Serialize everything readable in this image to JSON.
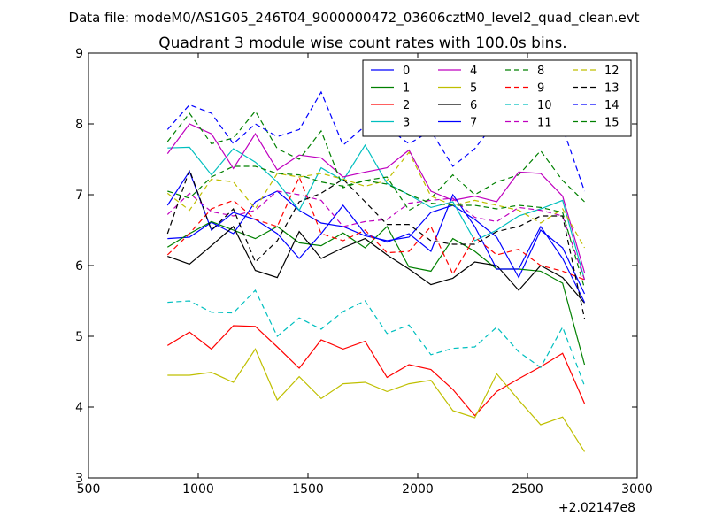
{
  "header": {
    "data_file": "Data file: modeM0/AS1G05_246T04_9000000472_03606cztM0_level2_quad_clean.evt"
  },
  "chart_data": {
    "type": "line",
    "title": "Quadrant 3 module wise count rates with 100.0s bins.",
    "xlabel": "",
    "ylabel": "",
    "x_offset_label": "+2.02147e8",
    "xlim": [
      500,
      3000
    ],
    "ylim": [
      3,
      9
    ],
    "xticks": [
      500,
      1000,
      1500,
      2000,
      2500,
      3000
    ],
    "yticks": [
      3,
      4,
      5,
      6,
      7,
      8,
      9
    ],
    "grid": false,
    "legend": {
      "placement": "top-right",
      "columns": 4
    },
    "x": [
      860,
      960,
      1060,
      1160,
      1260,
      1360,
      1460,
      1560,
      1660,
      1760,
      1860,
      1960,
      2060,
      2160,
      2260,
      2360,
      2460,
      2560,
      2660,
      2760
    ],
    "series": [
      {
        "name": "0",
        "color": "#0000ff",
        "dash": "solid",
        "values": [
          6.38,
          6.4,
          6.61,
          6.45,
          6.9,
          7.05,
          6.78,
          6.6,
          6.55,
          6.42,
          6.35,
          6.4,
          6.75,
          6.85,
          6.65,
          6.4,
          5.83,
          6.5,
          6.25,
          5.6
        ]
      },
      {
        "name": "1",
        "color": "#008000",
        "dash": "solid",
        "values": [
          6.26,
          6.45,
          6.62,
          6.5,
          6.38,
          6.55,
          6.32,
          6.28,
          6.46,
          6.25,
          6.55,
          5.98,
          5.92,
          6.38,
          6.2,
          5.95,
          5.95,
          5.92,
          5.75,
          4.6
        ]
      },
      {
        "name": "2",
        "color": "#ff0000",
        "dash": "solid",
        "values": [
          4.87,
          5.06,
          4.82,
          5.15,
          5.14,
          4.85,
          4.55,
          4.95,
          4.82,
          4.93,
          4.42,
          4.6,
          4.53,
          4.25,
          3.88,
          4.22,
          4.4,
          4.57,
          4.76,
          4.05
        ]
      },
      {
        "name": "3",
        "color": "#00bfbf",
        "dash": "solid",
        "values": [
          7.66,
          7.67,
          7.28,
          7.65,
          7.46,
          7.18,
          6.78,
          7.38,
          7.2,
          7.7,
          7.16,
          7.0,
          6.82,
          6.9,
          6.35,
          6.5,
          6.7,
          6.8,
          6.92,
          5.8
        ]
      },
      {
        "name": "4",
        "color": "#bf00bf",
        "dash": "solid",
        "values": [
          7.58,
          8.0,
          7.86,
          7.37,
          7.86,
          7.35,
          7.56,
          7.52,
          7.25,
          7.32,
          7.38,
          7.63,
          7.05,
          6.92,
          6.98,
          6.9,
          7.32,
          7.3,
          6.98,
          5.9
        ]
      },
      {
        "name": "5",
        "color": "#bfbf00",
        "dash": "solid",
        "values": [
          4.45,
          4.45,
          4.49,
          4.35,
          4.82,
          4.1,
          4.43,
          4.12,
          4.33,
          4.35,
          4.22,
          4.33,
          4.38,
          3.95,
          3.85,
          4.47,
          4.1,
          3.75,
          3.86,
          3.37
        ]
      },
      {
        "name": "6",
        "color": "#000000",
        "dash": "solid",
        "values": [
          6.13,
          6.02,
          6.28,
          6.55,
          5.93,
          5.83,
          6.48,
          6.1,
          6.25,
          6.38,
          6.15,
          5.95,
          5.73,
          5.82,
          6.05,
          6.0,
          5.65,
          6.0,
          5.83,
          5.47
        ]
      },
      {
        "name": "7",
        "color": "#0000ff",
        "dash": "solid",
        "values": [
          6.85,
          7.33,
          6.5,
          6.75,
          6.65,
          6.45,
          6.1,
          6.45,
          6.85,
          6.45,
          6.33,
          6.45,
          6.2,
          7.0,
          6.55,
          5.95,
          5.95,
          6.55,
          6.1,
          5.48
        ]
      },
      {
        "name": "8",
        "color": "#008000",
        "dash": "dashed",
        "values": [
          7.75,
          8.15,
          7.72,
          7.8,
          8.18,
          7.65,
          7.5,
          7.9,
          7.1,
          7.2,
          7.25,
          6.78,
          6.95,
          7.28,
          7.0,
          7.18,
          7.28,
          7.62,
          7.2,
          6.9
        ]
      },
      {
        "name": "9",
        "color": "#ff0000",
        "dash": "dashed",
        "values": [
          6.15,
          6.45,
          6.8,
          6.92,
          6.65,
          6.55,
          7.25,
          6.45,
          6.35,
          6.5,
          6.18,
          6.2,
          6.55,
          5.88,
          6.4,
          6.15,
          6.23,
          6.0,
          5.92,
          5.8
        ]
      },
      {
        "name": "10",
        "color": "#00bfbf",
        "dash": "dashed",
        "values": [
          5.48,
          5.5,
          5.34,
          5.33,
          5.65,
          5.0,
          5.26,
          5.1,
          5.35,
          5.5,
          5.04,
          5.16,
          4.74,
          4.83,
          4.85,
          5.13,
          4.78,
          4.56,
          5.13,
          4.3
        ]
      },
      {
        "name": "11",
        "color": "#bf00bf",
        "dash": "dashed",
        "values": [
          6.72,
          7.02,
          6.76,
          6.7,
          6.78,
          7.05,
          7.0,
          6.92,
          6.55,
          6.62,
          6.65,
          6.88,
          6.92,
          6.95,
          6.68,
          6.62,
          6.82,
          6.78,
          6.7,
          5.8
        ]
      },
      {
        "name": "12",
        "color": "#bfbf00",
        "dash": "dashed",
        "values": [
          7.02,
          6.78,
          7.22,
          7.18,
          6.8,
          7.3,
          7.25,
          7.3,
          7.22,
          7.12,
          7.2,
          7.6,
          6.98,
          6.85,
          6.92,
          6.85,
          6.78,
          6.6,
          6.8,
          6.25
        ]
      },
      {
        "name": "13",
        "color": "#000000",
        "dash": "dashed",
        "values": [
          6.45,
          7.35,
          6.5,
          6.8,
          6.05,
          6.35,
          6.9,
          7.02,
          7.22,
          6.9,
          6.58,
          6.58,
          6.35,
          6.3,
          6.3,
          6.48,
          6.55,
          6.7,
          6.7,
          5.25
        ]
      },
      {
        "name": "14",
        "color": "#0000ff",
        "dash": "dashed",
        "values": [
          7.92,
          8.27,
          8.15,
          7.72,
          8.0,
          7.82,
          7.92,
          8.45,
          7.7,
          7.97,
          7.95,
          7.72,
          7.9,
          7.4,
          7.65,
          8.05,
          7.9,
          7.85,
          7.95,
          7.05
        ]
      },
      {
        "name": "15",
        "color": "#008000",
        "dash": "dashed",
        "values": [
          7.05,
          6.95,
          7.25,
          7.4,
          7.4,
          7.3,
          7.28,
          7.18,
          7.12,
          7.2,
          7.15,
          7.0,
          6.88,
          6.85,
          6.85,
          6.8,
          6.85,
          6.82,
          6.75,
          5.68
        ]
      }
    ]
  }
}
